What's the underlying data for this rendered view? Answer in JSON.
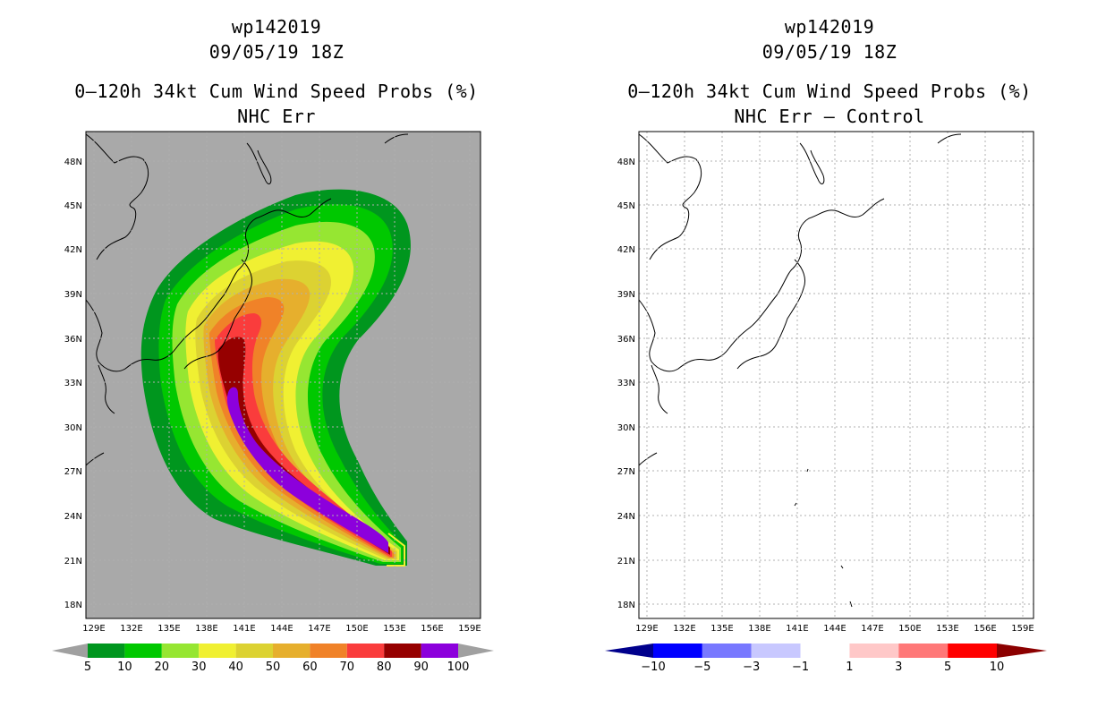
{
  "left": {
    "title_line1": "wp142019",
    "title_line2": "09/05/19 18Z",
    "title_line3": "0–120h 34kt Cum Wind Speed Probs (%)",
    "title_line4": "NHC Err",
    "colorbar": {
      "labels": [
        "5",
        "10",
        "20",
        "30",
        "40",
        "50",
        "60",
        "70",
        "80",
        "90",
        "100"
      ],
      "colors": [
        "#00961e",
        "#00c800",
        "#96e632",
        "#f0f032",
        "#dcd232",
        "#e6af2d",
        "#f08228",
        "#fa3c3c",
        "#960000",
        "#8c00dc"
      ],
      "end_color": "#a0a0a0"
    }
  },
  "right": {
    "title_line1": "wp142019",
    "title_line2": "09/05/19 18Z",
    "title_line3": "0–120h 34kt Cum Wind Speed Probs (%)",
    "title_line4": "NHC Err – Control",
    "colorbar": {
      "labels": [
        "−10",
        "−5",
        "−3",
        "−1",
        "1",
        "3",
        "5",
        "10"
      ],
      "colors": [
        "#0000c8",
        "#0000ff",
        "#7878ff",
        "#c8c8ff",
        "#ffffff",
        "#ffc8c8",
        "#ff7878",
        "#ff0000"
      ],
      "low_end_color": "#00008c",
      "high_end_color": "#8c0000"
    }
  },
  "axes": {
    "lat_labels": [
      "48N",
      "45N",
      "42N",
      "39N",
      "36N",
      "33N",
      "30N",
      "27N",
      "24N",
      "21N",
      "18N"
    ],
    "lon_labels": [
      "129E",
      "132E",
      "135E",
      "138E",
      "141E",
      "144E",
      "147E",
      "150E",
      "153E",
      "156E",
      "159E"
    ]
  },
  "colors": {
    "map_background_left": "#a9a9a9",
    "map_background_right": "#ffffff",
    "coastline": "#000000",
    "grid": "#b0b0b0"
  }
}
